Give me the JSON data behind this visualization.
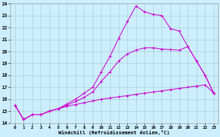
{
  "xlabel": "Windchill (Refroidissement éolien,°C)",
  "bg_color": "#cceeff",
  "grid_color": "#aacccc",
  "line_color": "#cc00cc",
  "xlim": [
    -0.5,
    23.5
  ],
  "ylim": [
    14,
    24
  ],
  "xticks": [
    0,
    1,
    2,
    3,
    4,
    5,
    6,
    7,
    8,
    9,
    10,
    11,
    12,
    13,
    14,
    15,
    16,
    17,
    18,
    19,
    20,
    21,
    22,
    23
  ],
  "yticks": [
    14,
    15,
    16,
    17,
    18,
    19,
    20,
    21,
    22,
    23,
    24
  ],
  "line1_x": [
    0,
    1,
    2,
    3,
    4,
    5,
    6,
    7,
    8,
    9,
    10,
    11,
    12,
    13,
    14,
    15,
    16,
    17,
    18,
    19,
    20,
    21,
    22,
    23
  ],
  "line1_y": [
    15.5,
    14.3,
    14.7,
    14.7,
    15.0,
    15.2,
    15.4,
    15.55,
    15.7,
    15.85,
    16.0,
    16.1,
    16.2,
    16.3,
    16.4,
    16.5,
    16.6,
    16.7,
    16.8,
    16.9,
    17.0,
    17.1,
    17.2,
    16.5
  ],
  "line2_x": [
    0,
    1,
    2,
    3,
    4,
    5,
    6,
    7,
    8,
    9,
    10,
    11,
    12,
    13,
    14,
    15,
    16,
    17,
    18,
    19,
    20,
    21,
    22,
    23
  ],
  "line2_y": [
    15.5,
    14.3,
    14.7,
    14.7,
    15.0,
    15.2,
    15.6,
    16.0,
    16.5,
    17.0,
    18.3,
    19.6,
    21.1,
    22.5,
    23.8,
    23.3,
    23.1,
    23.0,
    21.9,
    21.7,
    20.4,
    19.2,
    18.0,
    16.5
  ],
  "line3_x": [
    0,
    1,
    2,
    3,
    4,
    5,
    6,
    7,
    8,
    9,
    10,
    11,
    12,
    13,
    14,
    15,
    16,
    17,
    18,
    19,
    20,
    21,
    22,
    23
  ],
  "line3_y": [
    15.5,
    14.3,
    14.7,
    14.7,
    15.0,
    15.2,
    15.5,
    15.8,
    16.15,
    16.6,
    17.5,
    18.3,
    19.2,
    19.8,
    20.1,
    20.3,
    20.3,
    20.2,
    20.15,
    20.1,
    20.4,
    19.2,
    18.0,
    16.5
  ]
}
